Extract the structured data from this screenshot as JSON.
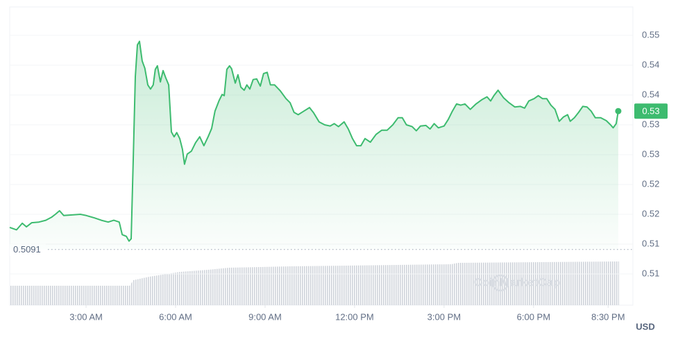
{
  "chart_data": {
    "type": "area-line",
    "color": "#3dbb6f",
    "x": [
      0.44,
      0.67,
      0.86,
      1.0,
      1.18,
      1.42,
      1.65,
      1.84,
      1.97,
      2.11,
      2.25,
      2.53,
      2.81,
      3.0,
      3.28,
      3.51,
      3.74,
      3.93,
      4.11,
      4.21,
      4.35,
      4.44,
      4.51,
      4.58,
      4.65,
      4.72,
      4.79,
      4.88,
      4.97,
      5.07,
      5.16,
      5.25,
      5.32,
      5.39,
      5.49,
      5.58,
      5.67,
      5.77,
      5.86,
      5.95,
      6.04,
      6.14,
      6.23,
      6.3,
      6.39,
      6.53,
      6.67,
      6.81,
      6.95,
      7.09,
      7.21,
      7.32,
      7.46,
      7.56,
      7.63,
      7.72,
      7.81,
      7.88,
      8.0,
      8.09,
      8.19,
      8.3,
      8.39,
      8.49,
      8.6,
      8.72,
      8.84,
      8.95,
      9.07,
      9.18,
      9.32,
      9.51,
      9.7,
      9.84,
      9.97,
      10.11,
      10.3,
      10.49,
      10.63,
      10.81,
      11.0,
      11.18,
      11.32,
      11.46,
      11.65,
      11.79,
      11.93,
      12.07,
      12.21,
      12.35,
      12.53,
      12.72,
      12.91,
      13.09,
      13.28,
      13.46,
      13.6,
      13.74,
      13.93,
      14.07,
      14.21,
      14.39,
      14.53,
      14.67,
      14.81,
      15.0,
      15.14,
      15.28,
      15.42,
      15.56,
      15.7,
      15.88,
      16.07,
      16.26,
      16.44,
      16.56,
      16.67,
      16.81,
      17.0,
      17.18,
      17.37,
      17.56,
      17.7,
      17.84,
      18.02,
      18.16,
      18.3,
      18.44,
      18.58,
      18.72,
      18.86,
      19.0,
      19.14,
      19.23,
      19.37,
      19.51,
      19.65,
      19.79,
      19.93,
      20.07,
      20.25,
      20.44,
      20.58,
      20.67,
      20.77,
      20.84
    ],
    "values": [
      0.5128,
      0.5124,
      0.5135,
      0.5129,
      0.5136,
      0.5137,
      0.514,
      0.5145,
      0.515,
      0.5156,
      0.5148,
      0.5149,
      0.515,
      0.5148,
      0.5144,
      0.514,
      0.5137,
      0.514,
      0.5137,
      0.5116,
      0.5113,
      0.5105,
      0.5109,
      0.5242,
      0.5381,
      0.5434,
      0.544,
      0.5407,
      0.5395,
      0.5367,
      0.536,
      0.5367,
      0.5393,
      0.5399,
      0.5372,
      0.5391,
      0.5379,
      0.5367,
      0.5288,
      0.528,
      0.5287,
      0.5277,
      0.5259,
      0.5234,
      0.5251,
      0.5256,
      0.527,
      0.528,
      0.5265,
      0.528,
      0.5294,
      0.5323,
      0.5341,
      0.5351,
      0.5349,
      0.5393,
      0.5399,
      0.5394,
      0.537,
      0.5384,
      0.5363,
      0.5358,
      0.5367,
      0.536,
      0.5376,
      0.5377,
      0.5365,
      0.5386,
      0.5388,
      0.5367,
      0.5367,
      0.5357,
      0.5344,
      0.5337,
      0.5321,
      0.5317,
      0.5323,
      0.5329,
      0.532,
      0.5305,
      0.53,
      0.5298,
      0.5302,
      0.5297,
      0.5305,
      0.5293,
      0.5277,
      0.5265,
      0.5265,
      0.5277,
      0.5271,
      0.5284,
      0.5291,
      0.5291,
      0.53,
      0.5312,
      0.5312,
      0.53,
      0.5297,
      0.529,
      0.5298,
      0.5299,
      0.5293,
      0.5302,
      0.5295,
      0.5298,
      0.5309,
      0.5323,
      0.5335,
      0.5333,
      0.5335,
      0.5326,
      0.5335,
      0.5342,
      0.5347,
      0.534,
      0.5349,
      0.5358,
      0.5345,
      0.5337,
      0.533,
      0.5331,
      0.5328,
      0.534,
      0.5344,
      0.5349,
      0.5344,
      0.5344,
      0.5333,
      0.5326,
      0.5306,
      0.5313,
      0.5317,
      0.5306,
      0.5312,
      0.5321,
      0.5331,
      0.533,
      0.5323,
      0.5312,
      0.5312,
      0.5307,
      0.53,
      0.5295,
      0.5302,
      0.5323
    ],
    "xlim": [
      0.44,
      21.33
    ],
    "xticks": [
      {
        "value": 3,
        "label": "3:00 AM"
      },
      {
        "value": 6,
        "label": "6:00 AM"
      },
      {
        "value": 9,
        "label": "9:00 AM"
      },
      {
        "value": 12,
        "label": "12:00 PM"
      },
      {
        "value": 15,
        "label": "3:00 PM"
      },
      {
        "value": 18,
        "label": "6:00 PM"
      },
      {
        "value": 20.5,
        "label": "8:30 PM"
      }
    ],
    "ylim": [
      0.49977,
      0.54977
    ],
    "yticks": [
      {
        "value": 0.545,
        "label": "0.55"
      },
      {
        "value": 0.54,
        "label": "0.54"
      },
      {
        "value": 0.535,
        "label": "0.54"
      },
      {
        "value": 0.53,
        "label": "0.53"
      },
      {
        "value": 0.525,
        "label": "0.53"
      },
      {
        "value": 0.52,
        "label": "0.52"
      },
      {
        "value": 0.515,
        "label": "0.52"
      },
      {
        "value": 0.51,
        "label": "0.51"
      },
      {
        "value": 0.505,
        "label": "0.51"
      }
    ],
    "grid": true,
    "baseline": 0.5091,
    "current_price": {
      "value": 0.5323,
      "label": "0.53"
    },
    "watermark": "CoinMarketCap",
    "currency": "USD"
  }
}
